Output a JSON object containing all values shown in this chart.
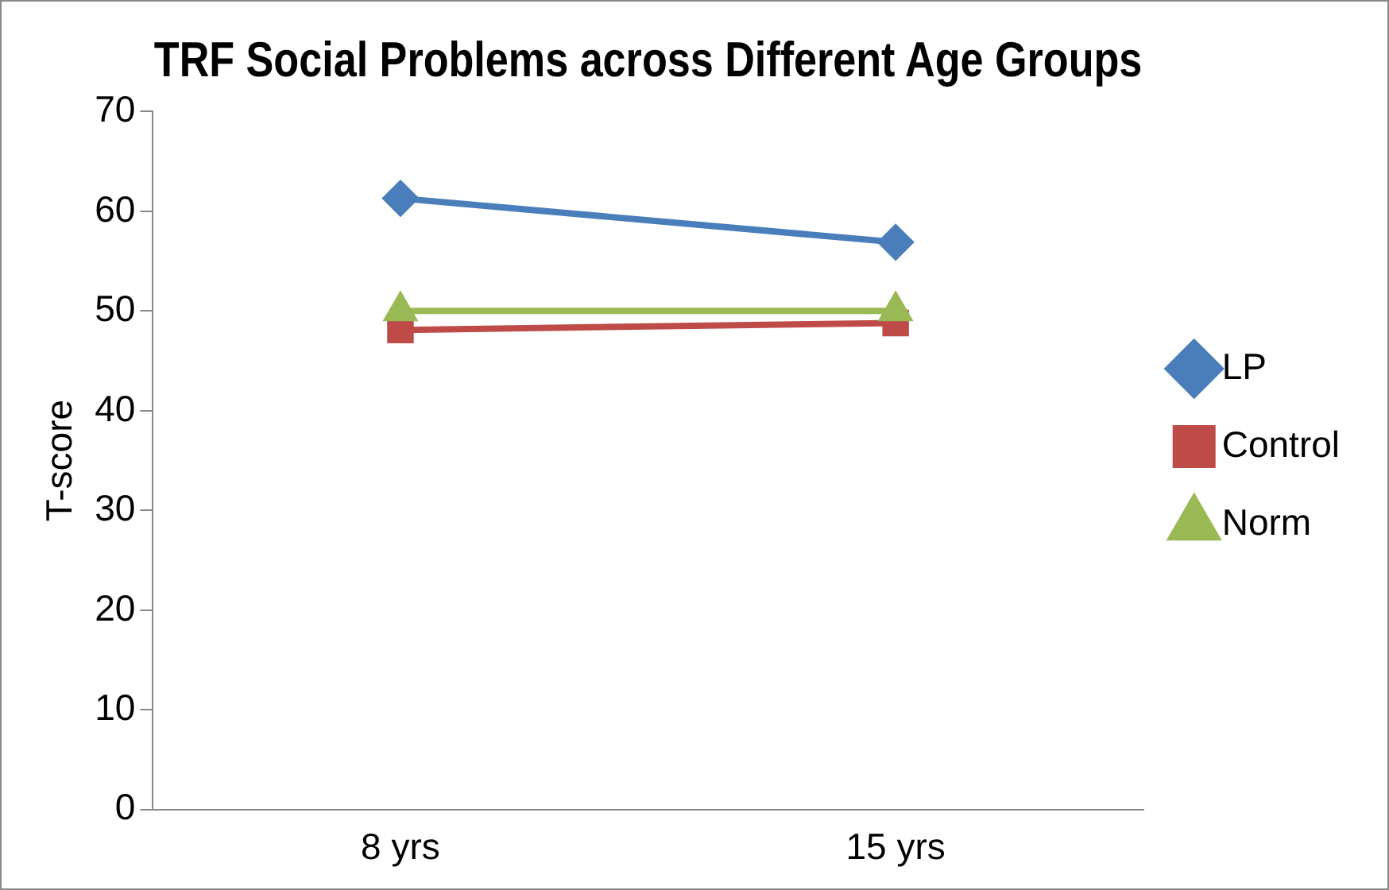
{
  "chart_data": {
    "type": "line",
    "title": "TRF Social Problems across Different Age Groups",
    "ylabel": "T-score",
    "categories": [
      "8 yrs",
      "15 yrs"
    ],
    "series": [
      {
        "name": "LP",
        "color": "#4a7ebb",
        "values": [
          61.3,
          56.9
        ],
        "marker": "diamond"
      },
      {
        "name": "Control",
        "color": "#be4b48",
        "values": [
          48.1,
          48.8
        ],
        "marker": "square"
      },
      {
        "name": "Norm",
        "color": "#98b954",
        "values": [
          50,
          50
        ],
        "marker": "triangle"
      }
    ],
    "ylim": [
      0,
      70
    ],
    "yticks": [
      0,
      10,
      20,
      30,
      40,
      50,
      60,
      70
    ],
    "grid": false,
    "legend": "right",
    "line_style": "solid"
  }
}
